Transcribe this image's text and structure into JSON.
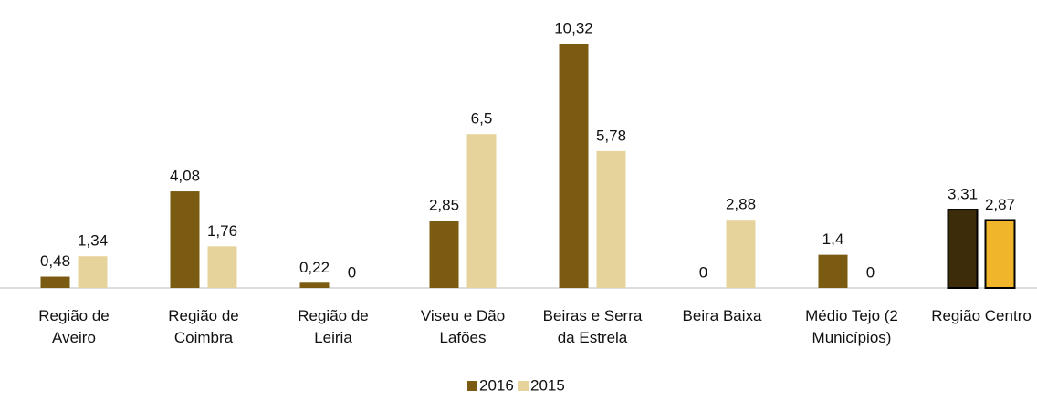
{
  "chart_data": {
    "type": "bar",
    "categories": [
      "Região de\nAveiro",
      "Região de\nCoimbra",
      "Região de\nLeiria",
      "Viseu e Dão\nLafões",
      "Beiras e Serra\nda Estrela",
      "Beira Baixa",
      "Médio Tejo (2\nMunicípios)",
      "Região Centro"
    ],
    "series": [
      {
        "name": "2016",
        "color": "#7b5a12",
        "highlight_color": "#3d2c0a",
        "values": [
          0.48,
          4.08,
          0.22,
          2.85,
          10.32,
          0,
          1.4,
          3.31
        ],
        "value_labels": [
          "0,48",
          "4,08",
          "0,22",
          "2,85",
          "10,32",
          "0",
          "1,4",
          "3,31"
        ]
      },
      {
        "name": "2015",
        "color": "#e6d39c",
        "highlight_color": "#f0b52a",
        "values": [
          1.34,
          1.76,
          0,
          6.5,
          5.78,
          2.88,
          0,
          2.87
        ],
        "value_labels": [
          "1,34",
          "1,76",
          "0",
          "6,5",
          "5,78",
          "2,88",
          "0",
          "2,87"
        ]
      }
    ],
    "highlight_category": 7,
    "legend": "bottom"
  }
}
